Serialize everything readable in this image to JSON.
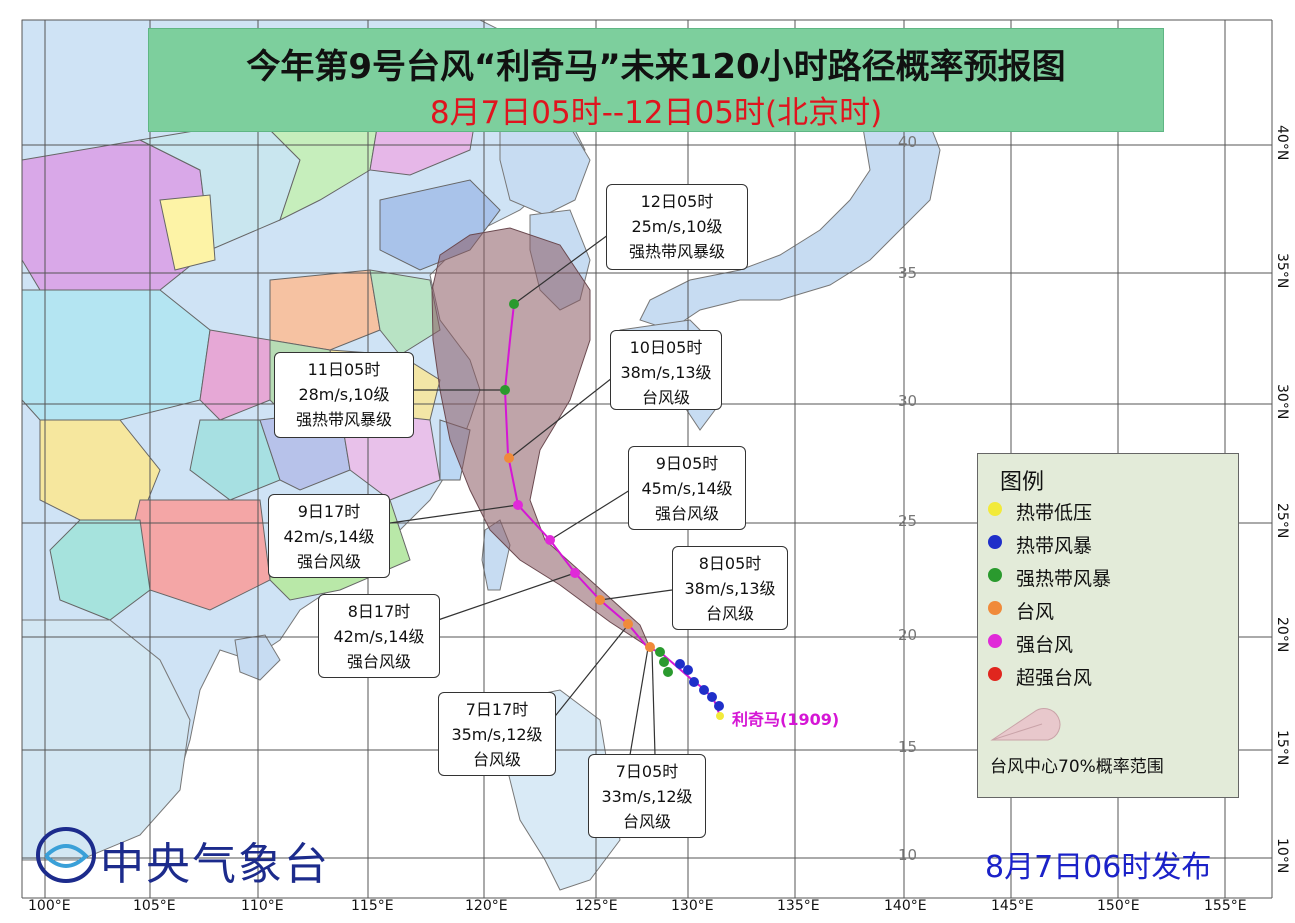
{
  "title": {
    "main": "今年第9号台风“利奇马”未来120小时路径概率预报图",
    "sub": "8月7日05时--12日05时(北京时)"
  },
  "storm_name": "利奇马(1909)",
  "publisher": "中央气象台",
  "publish_time": "8月7日06时发布",
  "callouts": [
    {
      "time": "12日05时",
      "wind": "25m/s,10级",
      "level": "强热带风暴级"
    },
    {
      "time": "10日05时",
      "wind": "38m/s,13级",
      "level": "台风级"
    },
    {
      "time": "11日05时",
      "wind": "28m/s,10级",
      "level": "强热带风暴级"
    },
    {
      "time": "9日05时",
      "wind": "45m/s,14级",
      "level": "强台风级"
    },
    {
      "time": "9日17时",
      "wind": "42m/s,14级",
      "level": "强台风级"
    },
    {
      "time": "8日05时",
      "wind": "38m/s,13级",
      "level": "台风级"
    },
    {
      "time": "8日17时",
      "wind": "42m/s,14级",
      "level": "强台风级"
    },
    {
      "time": "7日17时",
      "wind": "35m/s,12级",
      "level": "台风级"
    },
    {
      "time": "7日05时",
      "wind": "33m/s,12级",
      "level": "台风级"
    }
  ],
  "legend": {
    "title": "图例",
    "items": [
      {
        "label": "热带低压",
        "color": "#f2ea3a"
      },
      {
        "label": "热带风暴",
        "color": "#1f2fc9"
      },
      {
        "label": "强热带风暴",
        "color": "#2a9a2e"
      },
      {
        "label": "台风",
        "color": "#f08a3a"
      },
      {
        "label": "强台风",
        "color": "#e02ad8"
      },
      {
        "label": "超强台风",
        "color": "#e0261e"
      }
    ],
    "probability_label": "台风中心70%概率范围"
  },
  "lon_labels": [
    "100°E",
    "105°E",
    "110°E",
    "115°E",
    "120°E",
    "125°E",
    "130°E",
    "135°E",
    "140°E",
    "145°E",
    "150°E",
    "155°E"
  ],
  "lat_labels": [
    "40°N",
    "35°N",
    "30°N",
    "25°N",
    "20°N",
    "15°N",
    "10°N"
  ],
  "grid_numbers": [
    "40",
    "35",
    "30",
    "25",
    "20",
    "15",
    "10"
  ],
  "colors": {
    "sea": "#ffffff",
    "track": "#d516d5",
    "cone": "#8b5a63",
    "title_bg": "#7dcf9d",
    "subtitle": "#e0141e",
    "publish": "#1b22c8"
  }
}
